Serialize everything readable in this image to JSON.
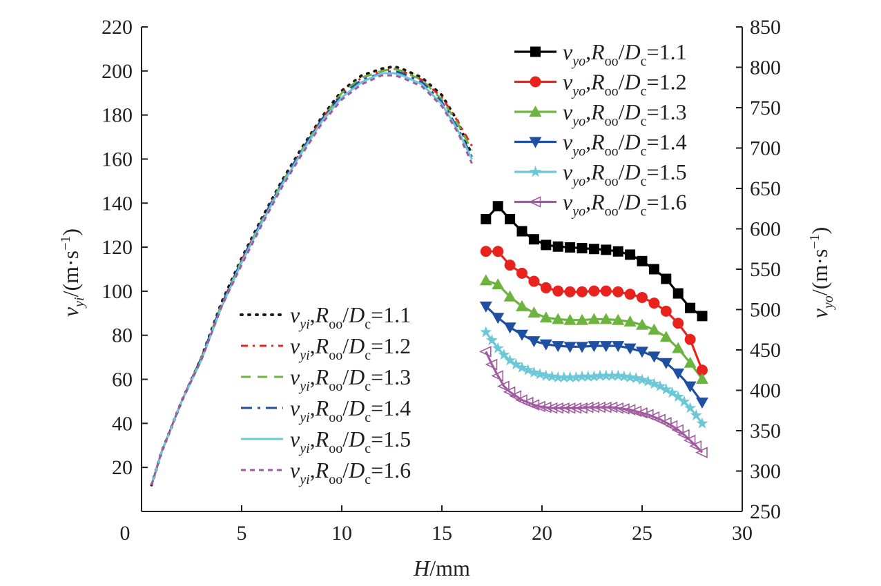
{
  "chart_data": {
    "type": "line",
    "x_axis": {
      "label_var": "H",
      "label_unit": "/mm",
      "range": [
        0,
        30
      ],
      "ticks": [
        "0",
        "5",
        "10",
        "15",
        "20",
        "25",
        "30"
      ]
    },
    "y_left": {
      "label_var": "v",
      "label_sub": "yi",
      "label_unit": "/(m·s",
      "label_sup": "−1",
      "label_close": ")",
      "range": [
        0,
        220
      ],
      "ticks": [
        "20",
        "40",
        "60",
        "80",
        "100",
        "120",
        "140",
        "160",
        "180",
        "200",
        "220"
      ]
    },
    "y_right": {
      "label_var": "v",
      "label_sub": "yo",
      "label_unit": "/(m·s",
      "label_sup": "−1",
      "label_close": ")",
      "range": [
        250,
        850
      ],
      "ticks": [
        "250",
        "300",
        "350",
        "400",
        "450",
        "500",
        "550",
        "600",
        "650",
        "700",
        "750",
        "800",
        "850"
      ]
    },
    "inner_series": [
      {
        "var": "v",
        "sub": "yi",
        "ratio": "1.1",
        "color": "#1a1a1a",
        "style": "dotted",
        "x": [
          0.5,
          1,
          2,
          3,
          4,
          5,
          6,
          7,
          8,
          9,
          10,
          11,
          12,
          12.6,
          13,
          14,
          15,
          15.8,
          16.4
        ],
        "y": [
          12,
          27,
          50,
          70,
          95,
          115,
          133,
          150,
          165,
          179,
          191,
          198,
          201,
          202,
          201,
          197,
          189,
          177,
          164
        ]
      },
      {
        "var": "v",
        "sub": "yi",
        "ratio": "1.2",
        "color": "#e8231e",
        "style": "dashdot",
        "x": [
          0.5,
          1,
          2,
          3,
          4,
          5,
          6,
          7,
          8,
          9,
          10,
          11,
          12,
          12.6,
          13,
          14,
          15,
          15.8,
          16.5
        ],
        "y": [
          12,
          27,
          50,
          70,
          94,
          114,
          132,
          149,
          164,
          178,
          190,
          197,
          200,
          201,
          200,
          196,
          188,
          177,
          166
        ]
      },
      {
        "var": "v",
        "sub": "yi",
        "ratio": "1.3",
        "color": "#6db33f",
        "style": "dashed",
        "x": [
          0.5,
          1,
          2,
          3,
          4,
          5,
          6,
          7,
          8,
          9,
          10,
          11,
          12,
          12.6,
          13,
          14,
          15,
          15.8,
          16.5
        ],
        "y": [
          12,
          27,
          50,
          70,
          94,
          114,
          132,
          149,
          164,
          178,
          190,
          197,
          200,
          201,
          200,
          196,
          187,
          176,
          164
        ]
      },
      {
        "var": "v",
        "sub": "yi",
        "ratio": "1.4",
        "color": "#1f4fa0",
        "style": "longdashdot",
        "x": [
          0.5,
          1,
          2,
          3,
          4,
          5,
          6,
          7,
          8,
          9,
          10,
          11,
          12,
          12.6,
          13,
          14,
          15,
          15.8,
          16.5
        ],
        "y": [
          12,
          27,
          50,
          70,
          94,
          114,
          132,
          149,
          164,
          178,
          189,
          196,
          199,
          200,
          199,
          195,
          186,
          174,
          161
        ]
      },
      {
        "var": "v",
        "sub": "yi",
        "ratio": "1.5",
        "color": "#6cc7d8",
        "style": "solid",
        "x": [
          0.5,
          1,
          2,
          3,
          4,
          5,
          6,
          7,
          8,
          9,
          10,
          11,
          12,
          12.6,
          13,
          14,
          15,
          15.8,
          16.5
        ],
        "y": [
          12,
          27,
          50,
          69,
          93,
          113,
          131,
          148,
          163,
          177,
          188,
          195,
          199,
          199,
          198,
          194,
          185,
          173,
          160
        ]
      },
      {
        "var": "v",
        "sub": "yi",
        "ratio": "1.6",
        "color": "#a05ba0",
        "style": "shortdash",
        "x": [
          0.5,
          1,
          2,
          3,
          4,
          5,
          6,
          7,
          8,
          9,
          10,
          11,
          12,
          12.6,
          13,
          14,
          15,
          15.8,
          16.5
        ],
        "y": [
          12,
          27,
          50,
          69,
          93,
          112,
          130,
          147,
          162,
          176,
          187,
          194,
          198,
          198,
          197,
          193,
          184,
          172,
          158
        ]
      }
    ],
    "outer_series": [
      {
        "var": "v",
        "sub": "yo",
        "ratio": "1.1",
        "color": "#000000",
        "marker": "square",
        "x": [
          17.2,
          17.8,
          18.4,
          19,
          19.6,
          20.2,
          20.8,
          21.4,
          22,
          22.6,
          23.2,
          23.8,
          24.4,
          25,
          25.6,
          26.2,
          26.8,
          27.4,
          28
        ],
        "y": [
          612,
          628,
          612,
          597,
          587,
          580,
          578,
          577,
          576,
          575,
          574,
          572,
          568,
          560,
          550,
          538,
          520,
          502,
          492
        ]
      },
      {
        "var": "v",
        "sub": "yo",
        "ratio": "1.2",
        "color": "#e8231e",
        "marker": "circle",
        "x": [
          17.2,
          17.8,
          18.4,
          19,
          19.6,
          20.2,
          20.8,
          21.4,
          22,
          22.6,
          23.2,
          23.8,
          24.4,
          25,
          25.6,
          26.2,
          26.8,
          27.4,
          28
        ],
        "y": [
          572,
          572,
          555,
          545,
          535,
          527,
          523,
          522,
          522,
          523,
          523,
          522,
          519,
          515,
          508,
          498,
          483,
          463,
          425
        ]
      },
      {
        "var": "v",
        "sub": "yo",
        "ratio": "1.3",
        "color": "#6db33f",
        "marker": "triangle-up",
        "x": [
          17.2,
          17.8,
          18.4,
          19,
          19.6,
          20.2,
          20.8,
          21.4,
          22,
          22.6,
          23.2,
          23.8,
          24.4,
          25,
          25.6,
          26.2,
          26.8,
          27.4,
          28
        ],
        "y": [
          536,
          531,
          516,
          504,
          496,
          490,
          488,
          487,
          487,
          488,
          488,
          487,
          485,
          481,
          475,
          466,
          452,
          434,
          414
        ]
      },
      {
        "var": "v",
        "sub": "yo",
        "ratio": "1.4",
        "color": "#1f4fa0",
        "marker": "triangle-down",
        "x": [
          17.2,
          17.8,
          18.4,
          19,
          19.6,
          20.2,
          20.8,
          21.4,
          22,
          22.6,
          23.2,
          23.8,
          24.4,
          25,
          25.6,
          26.2,
          26.8,
          27.4,
          28
        ],
        "y": [
          504,
          490,
          478,
          469,
          461,
          457,
          455,
          454,
          454,
          455,
          455,
          455,
          452,
          448,
          442,
          434,
          421,
          405,
          385
        ]
      },
      {
        "var": "v",
        "sub": "yo",
        "ratio": "1.5",
        "color": "#6cc7d8",
        "marker": "star",
        "x": [
          17.2,
          17.5,
          17.8,
          18.1,
          18.4,
          18.7,
          19,
          19.3,
          19.6,
          19.9,
          20.2,
          20.5,
          20.8,
          21.1,
          21.4,
          21.7,
          22,
          22.3,
          22.6,
          22.9,
          23.2,
          23.5,
          23.8,
          24.1,
          24.4,
          24.7,
          25,
          25.3,
          25.6,
          25.9,
          26.2,
          26.5,
          26.8,
          27.1,
          27.4,
          27.7,
          28
        ],
        "y": [
          472,
          462,
          452,
          444,
          437,
          432,
          428,
          425,
          422,
          420,
          418,
          417,
          416,
          416,
          416,
          416,
          417,
          417,
          417,
          418,
          418,
          418,
          418,
          417,
          416,
          415,
          413,
          411,
          408,
          405,
          401,
          397,
          392,
          386,
          378,
          369,
          359
        ]
      },
      {
        "var": "v",
        "sub": "yo",
        "ratio": "1.6",
        "color": "#a05ba0",
        "marker": "triangle-left-open",
        "x": [
          17.2,
          17.5,
          17.8,
          18.1,
          18.4,
          18.7,
          19,
          19.3,
          19.6,
          19.9,
          20.2,
          20.5,
          20.8,
          21.1,
          21.4,
          21.7,
          22,
          22.3,
          22.6,
          22.9,
          23.2,
          23.5,
          23.8,
          24.1,
          24.4,
          24.7,
          25,
          25.3,
          25.6,
          25.9,
          26.2,
          26.5,
          26.8,
          27.1,
          27.4,
          27.7,
          28
        ],
        "y": [
          448,
          432,
          418,
          405,
          398,
          393,
          388,
          385,
          382,
          380,
          379,
          378,
          378,
          378,
          378,
          378,
          378,
          379,
          379,
          379,
          379,
          379,
          378,
          377,
          376,
          374,
          372,
          370,
          367,
          364,
          360,
          356,
          351,
          345,
          338,
          331,
          323
        ]
      }
    ],
    "legend_outer_position": "top-right",
    "legend_inner_position": "bottom-center",
    "legend_ratio_prefix": {
      "var": "R",
      "sub": "oo",
      "div": "/",
      "var2": "D",
      "sub2": "c",
      "eq": "="
    },
    "grid": false
  }
}
